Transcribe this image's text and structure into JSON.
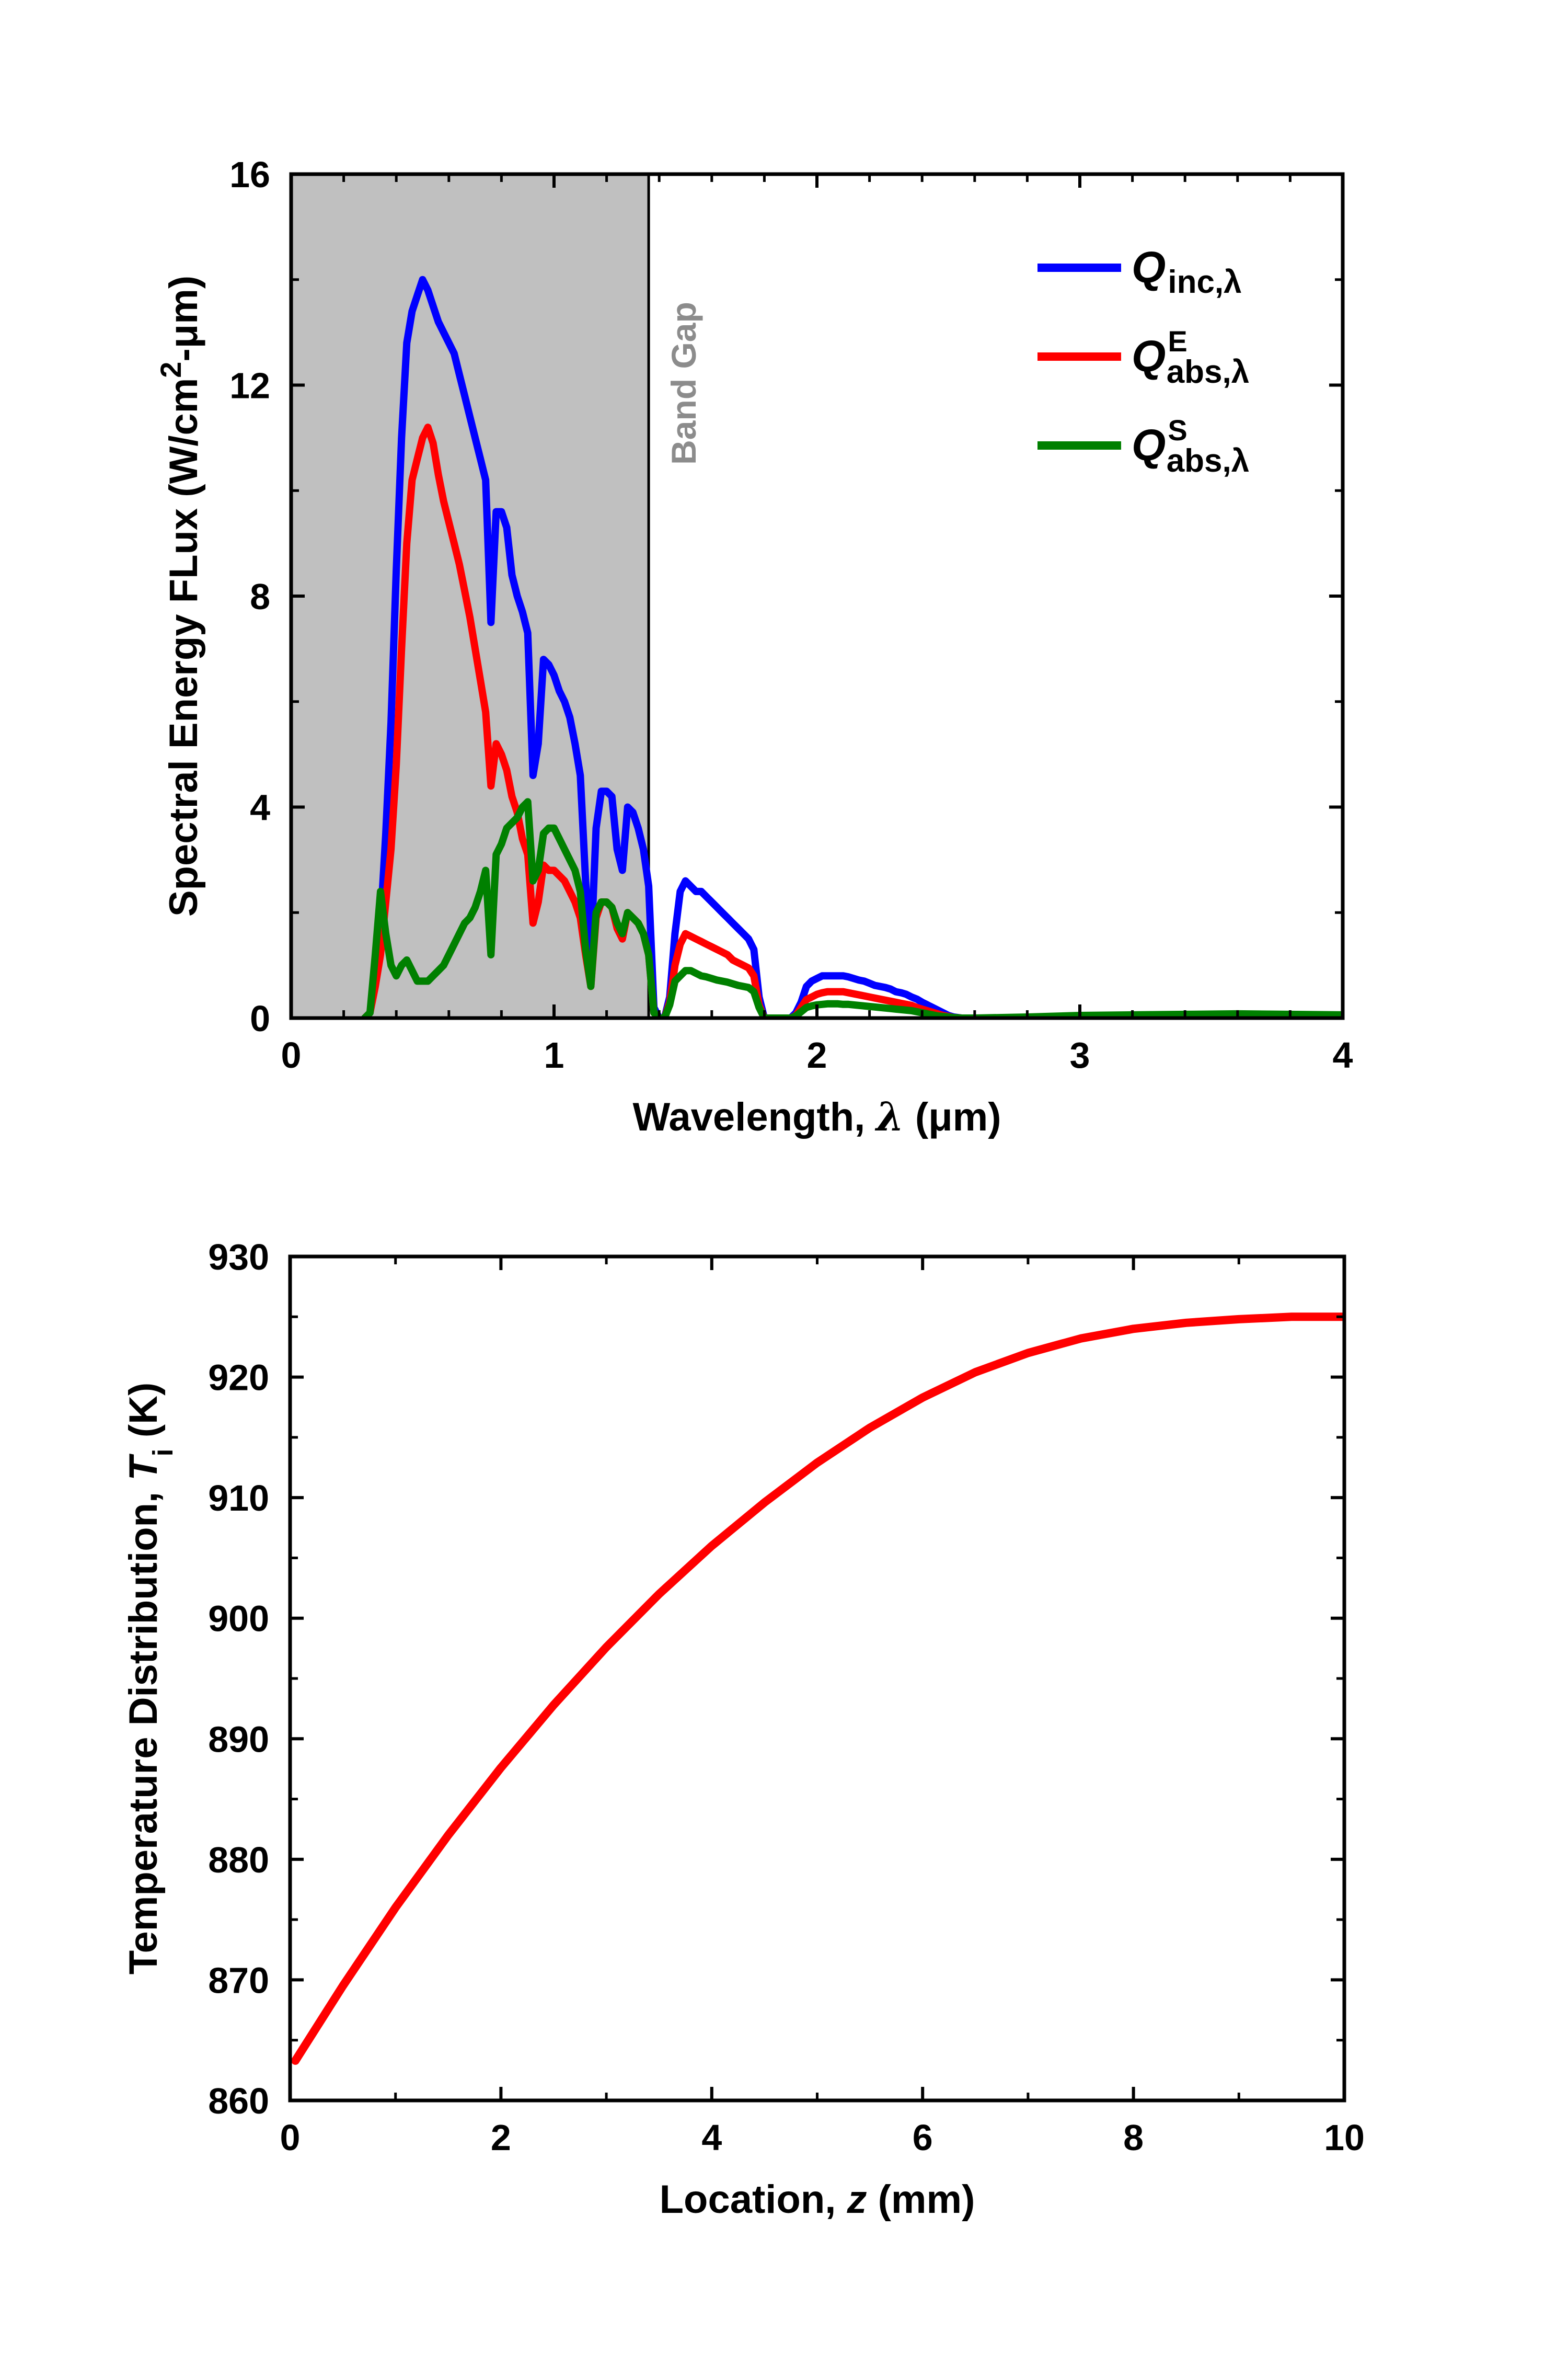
{
  "chart_data": [
    {
      "type": "line",
      "title": "",
      "xlabel": "Wavelength, λ (μm)",
      "xlabel_parts": {
        "main": "Wavelength, ",
        "var": "λ",
        "unit": " (μm)"
      },
      "ylabel": "Spectral Energy FLux (W/cm2-μm)",
      "ylabel_parts": {
        "main": "Spectral Energy FLux (W/cm",
        "sup": "2",
        "tail": "-μm)"
      },
      "xlim": [
        0,
        4
      ],
      "ylim": [
        0,
        16
      ],
      "xticks": [
        0,
        1,
        2,
        3,
        4
      ],
      "yticks": [
        0,
        4,
        8,
        12,
        16
      ],
      "annotation": {
        "text": "Band Gap",
        "x": 1.36
      },
      "shaded_region": {
        "x_from": 0,
        "x_to": 1.36,
        "color": "#c0c0c0"
      },
      "legend_position": "top-right",
      "series": [
        {
          "name": "Q_inc,λ",
          "legend": {
            "main": "Q",
            "sub": "inc,λ",
            "sup": ""
          },
          "color": "#0000ff",
          "x": [
            0.28,
            0.3,
            0.32,
            0.34,
            0.36,
            0.38,
            0.4,
            0.42,
            0.44,
            0.46,
            0.48,
            0.5,
            0.52,
            0.54,
            0.56,
            0.58,
            0.6,
            0.62,
            0.64,
            0.66,
            0.68,
            0.7,
            0.72,
            0.74,
            0.76,
            0.78,
            0.8,
            0.82,
            0.84,
            0.86,
            0.88,
            0.9,
            0.92,
            0.94,
            0.96,
            0.98,
            1.0,
            1.02,
            1.04,
            1.06,
            1.08,
            1.1,
            1.12,
            1.14,
            1.16,
            1.18,
            1.2,
            1.22,
            1.24,
            1.26,
            1.28,
            1.3,
            1.32,
            1.34,
            1.36,
            1.38,
            1.4,
            1.42,
            1.44,
            1.46,
            1.48,
            1.5,
            1.52,
            1.54,
            1.56,
            1.58,
            1.6,
            1.62,
            1.64,
            1.66,
            1.68,
            1.7,
            1.72,
            1.74,
            1.76,
            1.78,
            1.8,
            1.82,
            1.84,
            1.86,
            1.88,
            1.9,
            1.92,
            1.94,
            1.96,
            1.98,
            2.0,
            2.02,
            2.04,
            2.06,
            2.08,
            2.1,
            2.12,
            2.14,
            2.16,
            2.18,
            2.2,
            2.22,
            2.24,
            2.26,
            2.28,
            2.3,
            2.32,
            2.34,
            2.36,
            2.38,
            2.4,
            2.42,
            2.44,
            2.46,
            2.48,
            2.5,
            2.52,
            2.55,
            2.6,
            2.8,
            3.0,
            3.2,
            3.4,
            3.6,
            3.8,
            4.0
          ],
          "y": [
            0,
            0.1,
            0.8,
            1.8,
            3.5,
            5.6,
            8.5,
            11.0,
            12.8,
            13.4,
            13.7,
            14.0,
            13.8,
            13.5,
            13.2,
            13.0,
            12.8,
            12.6,
            12.2,
            11.8,
            11.4,
            11.0,
            10.6,
            10.2,
            7.5,
            9.6,
            9.6,
            9.3,
            8.4,
            8.0,
            7.7,
            7.3,
            4.6,
            5.2,
            6.8,
            6.7,
            6.5,
            6.2,
            6.0,
            5.7,
            5.2,
            4.6,
            2.6,
            1.2,
            3.6,
            4.3,
            4.3,
            4.2,
            3.2,
            2.8,
            4.0,
            3.9,
            3.6,
            3.2,
            2.5,
            0.2,
            0.0,
            0.0,
            0.4,
            1.6,
            2.4,
            2.6,
            2.5,
            2.4,
            2.4,
            2.3,
            2.2,
            2.1,
            2.0,
            1.9,
            1.8,
            1.7,
            1.6,
            1.5,
            1.3,
            0.4,
            0.0,
            0.0,
            0.0,
            0.0,
            0.0,
            0.0,
            0.1,
            0.3,
            0.6,
            0.7,
            0.75,
            0.8,
            0.8,
            0.8,
            0.8,
            0.8,
            0.78,
            0.75,
            0.72,
            0.7,
            0.66,
            0.62,
            0.6,
            0.58,
            0.55,
            0.5,
            0.48,
            0.45,
            0.4,
            0.36,
            0.3,
            0.25,
            0.2,
            0.15,
            0.1,
            0.05,
            0.02,
            0.0,
            0.0,
            0.0,
            0.0,
            0.0,
            0.0,
            0.0,
            0.0,
            0.0
          ]
        },
        {
          "name": "Q^E_abs,λ",
          "legend": {
            "main": "Q",
            "sub": "abs,λ",
            "sup": "E"
          },
          "color": "#ff0000",
          "x": [
            0.28,
            0.3,
            0.32,
            0.34,
            0.36,
            0.38,
            0.4,
            0.42,
            0.44,
            0.46,
            0.48,
            0.5,
            0.52,
            0.54,
            0.56,
            0.58,
            0.6,
            0.62,
            0.64,
            0.66,
            0.68,
            0.7,
            0.72,
            0.74,
            0.76,
            0.78,
            0.8,
            0.82,
            0.84,
            0.86,
            0.88,
            0.9,
            0.92,
            0.94,
            0.96,
            0.98,
            1.0,
            1.02,
            1.04,
            1.06,
            1.08,
            1.1,
            1.12,
            1.14,
            1.16,
            1.18,
            1.2,
            1.22,
            1.24,
            1.26,
            1.28,
            1.3,
            1.32,
            1.34,
            1.36,
            1.38,
            1.4,
            1.42,
            1.44,
            1.46,
            1.48,
            1.5,
            1.52,
            1.54,
            1.56,
            1.58,
            1.6,
            1.62,
            1.64,
            1.66,
            1.68,
            1.7,
            1.72,
            1.74,
            1.76,
            1.78,
            1.8,
            1.82,
            1.84,
            1.86,
            1.88,
            1.9,
            1.92,
            1.94,
            1.96,
            1.98,
            2.0,
            2.02,
            2.04,
            2.06,
            2.08,
            2.1,
            2.12,
            2.14,
            2.16,
            2.18,
            2.2,
            2.22,
            2.24,
            2.26,
            2.28,
            2.3,
            2.32,
            2.34,
            2.36,
            2.38,
            2.4,
            2.42,
            2.44,
            2.46,
            2.48,
            2.5,
            2.52,
            2.55,
            2.6,
            2.8,
            3.0,
            3.2,
            3.4,
            3.6,
            3.8,
            4.0
          ],
          "y": [
            0,
            0.1,
            0.6,
            1.2,
            2.2,
            3.2,
            4.8,
            7.0,
            9.0,
            10.2,
            10.6,
            11.0,
            11.2,
            10.9,
            10.3,
            9.8,
            9.4,
            9.0,
            8.6,
            8.1,
            7.6,
            7.0,
            6.4,
            5.8,
            4.4,
            5.2,
            5.0,
            4.7,
            4.2,
            3.9,
            3.4,
            3.1,
            1.8,
            2.2,
            2.9,
            2.8,
            2.8,
            2.7,
            2.6,
            2.4,
            2.2,
            1.9,
            1.2,
            0.6,
            1.9,
            2.2,
            2.2,
            2.1,
            1.7,
            1.5,
            2.0,
            1.9,
            1.8,
            1.6,
            1.2,
            0.1,
            0.0,
            0.0,
            0.3,
            1.0,
            1.4,
            1.6,
            1.55,
            1.5,
            1.45,
            1.4,
            1.35,
            1.3,
            1.25,
            1.2,
            1.1,
            1.05,
            1.0,
            0.95,
            0.8,
            0.25,
            0.0,
            0.0,
            0.0,
            0.0,
            0.0,
            0.0,
            0.05,
            0.2,
            0.35,
            0.4,
            0.45,
            0.48,
            0.5,
            0.5,
            0.5,
            0.5,
            0.48,
            0.46,
            0.44,
            0.42,
            0.4,
            0.38,
            0.36,
            0.34,
            0.32,
            0.3,
            0.28,
            0.26,
            0.24,
            0.2,
            0.17,
            0.14,
            0.11,
            0.08,
            0.05,
            0.03,
            0.01,
            0.0,
            0.0,
            0.0,
            0.0,
            0.0,
            0.0,
            0.0,
            0.0,
            0.0
          ]
        },
        {
          "name": "Q^S_abs,λ",
          "legend": {
            "main": "Q",
            "sub": "abs,λ",
            "sup": "S"
          },
          "color": "#008000",
          "x": [
            0.28,
            0.3,
            0.32,
            0.34,
            0.36,
            0.38,
            0.4,
            0.42,
            0.44,
            0.46,
            0.48,
            0.5,
            0.52,
            0.54,
            0.56,
            0.58,
            0.6,
            0.62,
            0.64,
            0.66,
            0.68,
            0.7,
            0.72,
            0.74,
            0.76,
            0.78,
            0.8,
            0.82,
            0.84,
            0.86,
            0.88,
            0.9,
            0.92,
            0.94,
            0.96,
            0.98,
            1.0,
            1.02,
            1.04,
            1.06,
            1.08,
            1.1,
            1.12,
            1.14,
            1.16,
            1.18,
            1.2,
            1.22,
            1.24,
            1.26,
            1.28,
            1.3,
            1.32,
            1.34,
            1.36,
            1.38,
            1.4,
            1.42,
            1.44,
            1.46,
            1.48,
            1.5,
            1.52,
            1.54,
            1.56,
            1.58,
            1.6,
            1.62,
            1.64,
            1.66,
            1.68,
            1.7,
            1.72,
            1.74,
            1.76,
            1.78,
            1.8,
            1.82,
            1.84,
            1.86,
            1.88,
            1.9,
            1.92,
            1.94,
            1.96,
            1.98,
            2.0,
            2.02,
            2.04,
            2.06,
            2.08,
            2.1,
            2.12,
            2.14,
            2.16,
            2.18,
            2.2,
            2.22,
            2.24,
            2.26,
            2.28,
            2.3,
            2.32,
            2.34,
            2.36,
            2.38,
            2.4,
            2.42,
            2.44,
            2.46,
            2.48,
            2.5,
            2.52,
            2.55,
            2.6,
            2.8,
            3.0,
            3.2,
            3.4,
            3.6,
            3.8,
            4.0
          ],
          "y": [
            0,
            0.1,
            1.2,
            2.4,
            1.6,
            1.0,
            0.8,
            1.0,
            1.1,
            0.9,
            0.7,
            0.7,
            0.7,
            0.8,
            0.9,
            1.0,
            1.2,
            1.4,
            1.6,
            1.8,
            1.9,
            2.1,
            2.4,
            2.8,
            1.2,
            3.1,
            3.3,
            3.6,
            3.7,
            3.8,
            4.0,
            4.1,
            2.6,
            2.8,
            3.5,
            3.6,
            3.6,
            3.4,
            3.2,
            3.0,
            2.8,
            2.4,
            1.3,
            0.6,
            2.0,
            2.2,
            2.2,
            2.1,
            1.8,
            1.6,
            2.0,
            1.9,
            1.8,
            1.6,
            1.2,
            0.1,
            0.0,
            0.0,
            0.25,
            0.7,
            0.8,
            0.9,
            0.9,
            0.85,
            0.8,
            0.78,
            0.75,
            0.72,
            0.7,
            0.68,
            0.65,
            0.62,
            0.6,
            0.58,
            0.5,
            0.2,
            0.0,
            0.0,
            0.0,
            0.0,
            0.0,
            0.0,
            0.04,
            0.12,
            0.2,
            0.23,
            0.25,
            0.26,
            0.27,
            0.27,
            0.27,
            0.26,
            0.26,
            0.25,
            0.24,
            0.23,
            0.22,
            0.21,
            0.2,
            0.19,
            0.18,
            0.17,
            0.16,
            0.15,
            0.14,
            0.12,
            0.1,
            0.08,
            0.06,
            0.04,
            0.03,
            0.02,
            0.01,
            0.0,
            0.0,
            0.02,
            0.05,
            0.06,
            0.07,
            0.08,
            0.07,
            0.06
          ]
        }
      ]
    },
    {
      "type": "line",
      "title": "",
      "xlabel": "Location, z (mm)",
      "xlabel_parts": {
        "main": "Location, ",
        "var": "z",
        "unit": " (mm)"
      },
      "ylabel": "Temperature Distribution, Ti (K)",
      "ylabel_parts": {
        "main": "Temperature Distribution, ",
        "var": "T",
        "sub": "i",
        "unit": " (K)"
      },
      "xlim": [
        0,
        10
      ],
      "ylim": [
        860,
        930
      ],
      "xticks": [
        0,
        2,
        4,
        6,
        8,
        10
      ],
      "yticks": [
        860,
        870,
        880,
        890,
        900,
        910,
        920,
        930
      ],
      "series": [
        {
          "name": "Ti",
          "color": "#ff0000",
          "x": [
            0.05,
            0.5,
            1.0,
            1.5,
            2.0,
            2.5,
            3.0,
            3.5,
            4.0,
            4.5,
            5.0,
            5.5,
            6.0,
            6.5,
            7.0,
            7.5,
            8.0,
            8.5,
            9.0,
            9.5,
            10.0
          ],
          "y": [
            863.3,
            869.5,
            876.0,
            882.0,
            887.6,
            892.8,
            897.6,
            902.0,
            906.0,
            909.6,
            912.9,
            915.8,
            918.3,
            920.4,
            922.0,
            923.2,
            924.0,
            924.5,
            924.8,
            925.0,
            925.0
          ]
        }
      ]
    }
  ]
}
